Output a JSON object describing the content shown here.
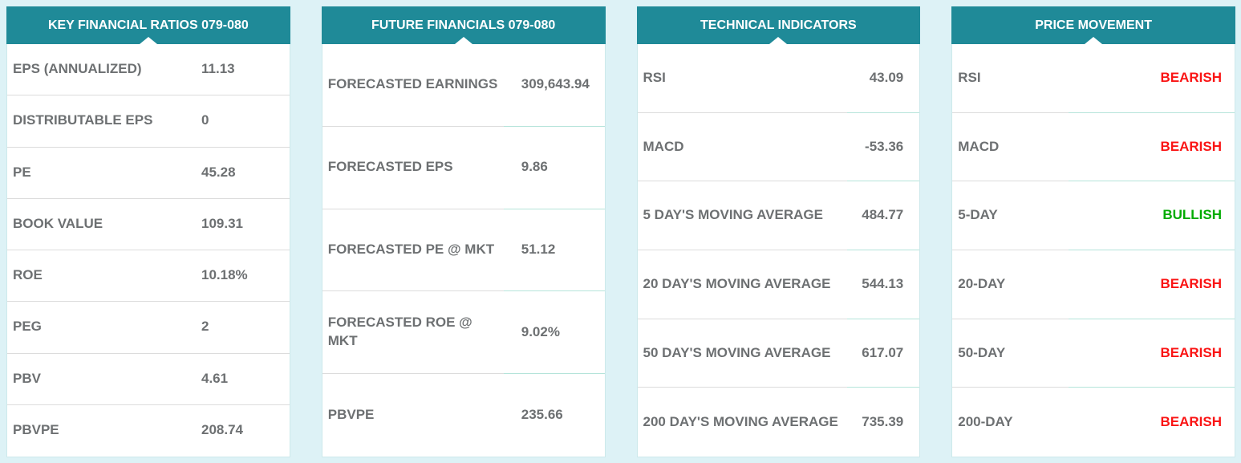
{
  "colors": {
    "accent_teal": "#1f8a98",
    "page_background": "#ddf2f6",
    "text_gray": "#6d7072",
    "bearish_red": "#fa1414",
    "bullish_green": "#00ab00"
  },
  "panels": [
    {
      "title": "KEY FINANCIAL RATIOS 079-080",
      "rows": [
        {
          "label": "EPS (ANNUALIZED)",
          "value": "11.13"
        },
        {
          "label": "DISTRIBUTABLE EPS",
          "value": "0"
        },
        {
          "label": "PE",
          "value": "45.28"
        },
        {
          "label": "BOOK VALUE",
          "value": "109.31"
        },
        {
          "label": "ROE",
          "value": "10.18%"
        },
        {
          "label": "PEG",
          "value": "2"
        },
        {
          "label": "PBV",
          "value": "4.61"
        },
        {
          "label": "PBVPE",
          "value": "208.74"
        }
      ]
    },
    {
      "title": "FUTURE FINANCIALS 079-080",
      "rows": [
        {
          "label": "FORECASTED EARNINGS",
          "value": "309,643.94"
        },
        {
          "label": "FORECASTED EPS",
          "value": "9.86"
        },
        {
          "label": "FORECASTED PE @ MKT",
          "value": "51.12"
        },
        {
          "label": "FORECASTED ROE @ MKT",
          "value": "9.02%"
        },
        {
          "label": "PBVPE",
          "value": "235.66"
        }
      ]
    },
    {
      "title": "TECHNICAL INDICATORS",
      "rows": [
        {
          "label": "RSI",
          "value": "43.09"
        },
        {
          "label": "MACD",
          "value": "-53.36"
        },
        {
          "label": "5 DAY'S MOVING AVERAGE",
          "value": "484.77"
        },
        {
          "label": "20 DAY'S MOVING AVERAGE",
          "value": "544.13"
        },
        {
          "label": "50 DAY'S MOVING AVERAGE",
          "value": "617.07"
        },
        {
          "label": "200 DAY'S MOVING AVERAGE",
          "value": "735.39"
        }
      ]
    },
    {
      "title": "PRICE MOVEMENT",
      "rows": [
        {
          "label": "RSI",
          "value": "BEARISH",
          "status": "bearish"
        },
        {
          "label": "MACD",
          "value": "BEARISH",
          "status": "bearish"
        },
        {
          "label": "5-DAY",
          "value": "BULLISH",
          "status": "bullish"
        },
        {
          "label": "20-DAY",
          "value": "BEARISH",
          "status": "bearish"
        },
        {
          "label": "50-DAY",
          "value": "BEARISH",
          "status": "bearish"
        },
        {
          "label": "200-DAY",
          "value": "BEARISH",
          "status": "bearish"
        }
      ]
    }
  ]
}
